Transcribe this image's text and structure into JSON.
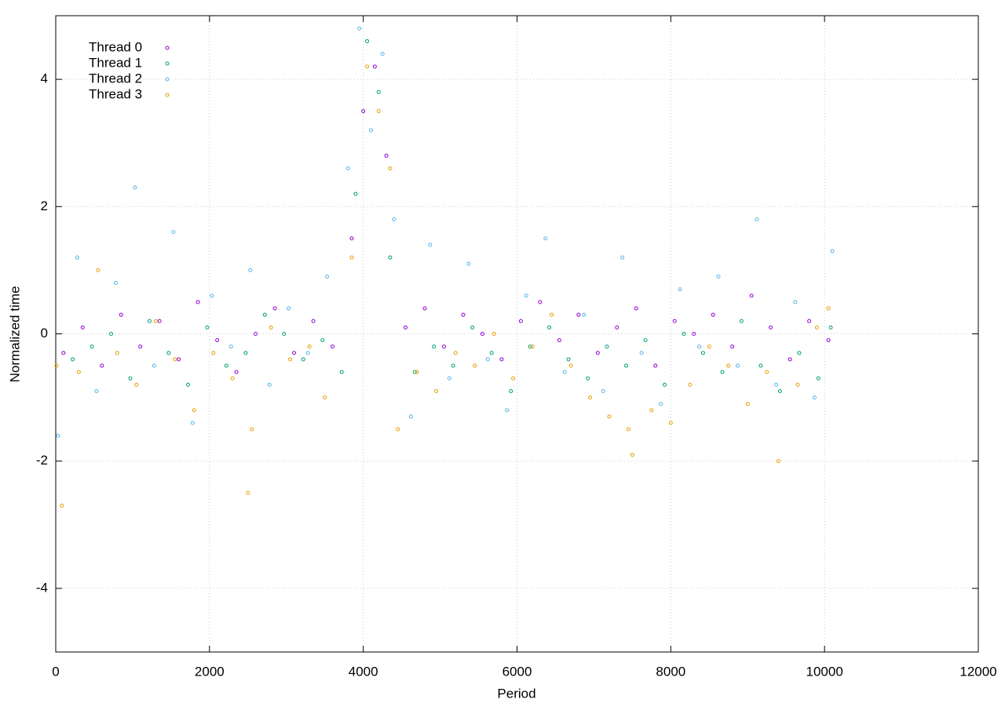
{
  "chart_data": {
    "type": "scatter",
    "xlabel": "Period",
    "ylabel": "Normalized time",
    "xlim": [
      0,
      12000
    ],
    "xticks": [
      0,
      2000,
      4000,
      6000,
      8000,
      10000,
      12000
    ],
    "ylim": [
      -5,
      5
    ],
    "yticks": [
      -4,
      -2,
      0,
      2,
      4
    ],
    "grid": true,
    "legend": "top-left",
    "series": [
      {
        "name": "Thread 0",
        "color": "#9400d3",
        "x": [
          100,
          350,
          600,
          850,
          1100,
          1350,
          1600,
          1850,
          2100,
          2350,
          2600,
          2850,
          3100,
          3350,
          3600,
          3850,
          4000,
          4150,
          4300,
          4550,
          4800,
          5050,
          5300,
          5550,
          5800,
          6050,
          6300,
          6550,
          6800,
          7050,
          7300,
          7550,
          7800,
          8050,
          8300,
          8550,
          8800,
          9050,
          9300,
          9550,
          9800,
          10050
        ],
        "values": [
          -0.3,
          0.1,
          -0.5,
          0.3,
          -0.2,
          0.2,
          -0.4,
          0.5,
          -0.1,
          -0.6,
          0.0,
          0.4,
          -0.3,
          0.2,
          -0.2,
          1.5,
          3.5,
          4.2,
          2.8,
          0.1,
          0.4,
          -0.2,
          0.3,
          0.0,
          -0.4,
          0.2,
          0.5,
          -0.1,
          0.3,
          -0.3,
          0.1,
          0.4,
          -0.5,
          0.2,
          0.0,
          0.3,
          -0.2,
          0.6,
          0.1,
          -0.4,
          0.2,
          -0.1
        ]
      },
      {
        "name": "Thread 1",
        "color": "#009e73",
        "x": [
          220,
          470,
          720,
          970,
          1220,
          1470,
          1720,
          1970,
          2220,
          2470,
          2720,
          2970,
          3220,
          3470,
          3720,
          3900,
          4050,
          4200,
          4350,
          4670,
          4920,
          5170,
          5420,
          5670,
          5920,
          6170,
          6420,
          6670,
          6920,
          7170,
          7420,
          7670,
          7920,
          8170,
          8420,
          8670,
          8920,
          9170,
          9420,
          9670,
          9920,
          10080
        ],
        "values": [
          -0.4,
          -0.2,
          0.0,
          -0.7,
          0.2,
          -0.3,
          -0.8,
          0.1,
          -0.5,
          -0.3,
          0.3,
          0.0,
          -0.4,
          -0.1,
          -0.6,
          2.2,
          4.6,
          3.8,
          1.2,
          -0.6,
          -0.2,
          -0.5,
          0.1,
          -0.3,
          -0.9,
          -0.2,
          0.1,
          -0.4,
          -0.7,
          -0.2,
          -0.5,
          -0.1,
          -0.8,
          0.0,
          -0.3,
          -0.6,
          0.2,
          -0.5,
          -0.9,
          -0.3,
          -0.7,
          0.1
        ]
      },
      {
        "name": "Thread 2",
        "color": "#56b4e9",
        "x": [
          30,
          280,
          530,
          780,
          1030,
          1280,
          1530,
          1780,
          2030,
          2280,
          2530,
          2780,
          3030,
          3280,
          3530,
          3800,
          3950,
          4100,
          4250,
          4400,
          4620,
          4870,
          5120,
          5370,
          5620,
          5870,
          6120,
          6370,
          6620,
          6870,
          7120,
          7370,
          7620,
          7870,
          8120,
          8370,
          8620,
          8870,
          9120,
          9370,
          9620,
          9870,
          10100
        ],
        "values": [
          -1.6,
          1.2,
          -0.9,
          0.8,
          2.3,
          -0.5,
          1.6,
          -1.4,
          0.6,
          -0.2,
          1.0,
          -0.8,
          0.4,
          -0.3,
          0.9,
          2.6,
          4.8,
          3.2,
          4.4,
          1.8,
          -1.3,
          1.4,
          -0.7,
          1.1,
          -0.4,
          -1.2,
          0.6,
          1.5,
          -0.6,
          0.3,
          -0.9,
          1.2,
          -0.3,
          -1.1,
          0.7,
          -0.2,
          0.9,
          -0.5,
          1.8,
          -0.8,
          0.5,
          -1.0,
          1.3
        ]
      },
      {
        "name": "Thread 3",
        "color": "#e69f00",
        "x": [
          10,
          80,
          300,
          550,
          800,
          1050,
          1300,
          1550,
          1800,
          2050,
          2300,
          2500,
          2550,
          2800,
          3050,
          3300,
          3500,
          3850,
          4050,
          4200,
          4350,
          4450,
          4700,
          4950,
          5200,
          5450,
          5700,
          5950,
          6200,
          6450,
          6700,
          6950,
          7200,
          7450,
          7500,
          7750,
          8000,
          8250,
          8500,
          8750,
          9000,
          9250,
          9400,
          9650,
          9900,
          10050
        ],
        "values": [
          -0.5,
          -2.7,
          -0.6,
          1.0,
          -0.3,
          -0.8,
          0.2,
          -0.4,
          -1.2,
          -0.3,
          -0.7,
          -2.5,
          -1.5,
          0.1,
          -0.4,
          -0.2,
          -1.0,
          1.2,
          4.2,
          3.5,
          2.6,
          -1.5,
          -0.6,
          -0.9,
          -0.3,
          -0.5,
          0.0,
          -0.7,
          -0.2,
          0.3,
          -0.5,
          -1.0,
          -1.3,
          -1.5,
          -1.9,
          -1.2,
          -1.4,
          -0.8,
          -0.2,
          -0.5,
          -1.1,
          -0.6,
          -2.0,
          -0.8,
          0.1,
          0.4
        ]
      }
    ]
  }
}
